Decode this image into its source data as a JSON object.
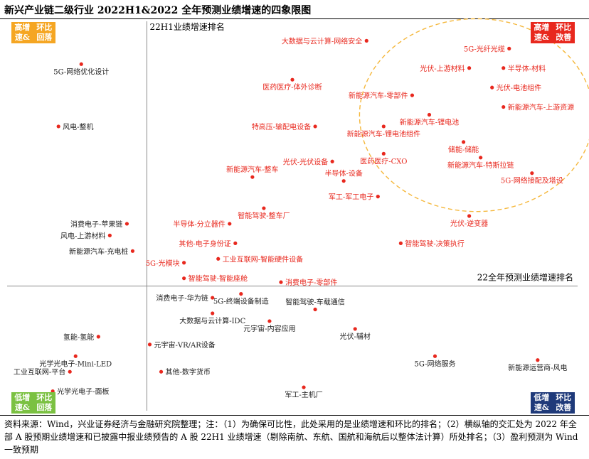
{
  "title": "新兴产业链二级行业 2022H1&2022 全年预测业绩增速的四象限图",
  "footnote": "资料来源：Wind，兴业证券经济与金融研究院整理；注：（1）为确保可比性，此处采用的是业绩增速和环比的排名；（2）横纵轴的交汇处为 2022 年全部 A 股预期业绩增速和已披露中报业绩预告的 A 股 22H1 业绩增速（剔除南航、东航、国航和海航后以整体法计算）所处排名；（3）盈利预测为 Wind 一致预期",
  "quadrants": {
    "top_left": {
      "line1": "高增速&",
      "line2": "环比回落",
      "color": "#F5A623"
    },
    "top_right": {
      "line1": "高增速&",
      "line2": "环比改善",
      "color": "#E8281E"
    },
    "bottom_left": {
      "line1": "低增速&",
      "line2": "环比回落",
      "color": "#7BC142"
    },
    "bottom_right": {
      "line1": "低增速&",
      "line2": "环比改善",
      "color": "#1F3A7A"
    }
  },
  "colors": {
    "improve": "#E8281E",
    "decline": "#222222",
    "highlight": "#F5B83D",
    "axis": "#8a8a8a"
  },
  "chart_data": {
    "type": "scatter",
    "title": "新兴产业链二级行业 2022H1&2022 全年预测业绩增速的四象限图",
    "ylabel": "22H1业绩增速排名",
    "xlabel": "22全年预测业绩增速排名",
    "x_range": [
      0,
      100
    ],
    "y_range": [
      0,
      100
    ],
    "crossing": {
      "x": 24.5,
      "y": 32
    },
    "highlight_group": "top-right dashed circle",
    "points": [
      {
        "label": "5G-网络优化设计",
        "x": 13,
        "y": 89,
        "group": "decline",
        "label_pos": "below"
      },
      {
        "label": "风电-整机",
        "x": 9,
        "y": 73,
        "group": "decline",
        "label_pos": "right"
      },
      {
        "label": "消费电子-苹果链",
        "x": 21,
        "y": 48,
        "group": "decline",
        "label_pos": "left"
      },
      {
        "label": "风电-上游材料",
        "x": 18,
        "y": 45,
        "group": "decline",
        "label_pos": "left"
      },
      {
        "label": "新能源汽车-充电桩",
        "x": 22,
        "y": 41,
        "group": "decline",
        "label_pos": "left"
      },
      {
        "label": "消费电子-华为链",
        "x": 36,
        "y": 29,
        "group": "decline",
        "label_pos": "left"
      },
      {
        "label": "大数据与云计算-IDC",
        "x": 36,
        "y": 25,
        "group": "decline",
        "label_pos": "below"
      },
      {
        "label": "5G-终端设备制造",
        "x": 41,
        "y": 30,
        "group": "decline",
        "label_pos": "below"
      },
      {
        "label": "智能驾驶-车载通信",
        "x": 54,
        "y": 26,
        "group": "decline",
        "label_pos": "above"
      },
      {
        "label": "元宇宙-内容应用",
        "x": 46,
        "y": 23,
        "group": "decline",
        "label_pos": "below"
      },
      {
        "label": "光伏-辅材",
        "x": 61,
        "y": 21,
        "group": "decline",
        "label_pos": "below"
      },
      {
        "label": "氢能-氢能",
        "x": 16,
        "y": 19,
        "group": "decline",
        "label_pos": "left"
      },
      {
        "label": "元宇宙-VR/AR设备",
        "x": 25,
        "y": 17,
        "group": "decline",
        "label_pos": "right"
      },
      {
        "label": "光学光电子-Mini-LED",
        "x": 12,
        "y": 14,
        "group": "decline",
        "label_pos": "below"
      },
      {
        "label": "5G-网络服务",
        "x": 75,
        "y": 14,
        "group": "decline",
        "label_pos": "below"
      },
      {
        "label": "新能源运营商-风电",
        "x": 93,
        "y": 13,
        "group": "decline",
        "label_pos": "below"
      },
      {
        "label": "工业互联网-平台",
        "x": 11,
        "y": 10,
        "group": "decline",
        "label_pos": "left"
      },
      {
        "label": "其他-数字货币",
        "x": 27,
        "y": 10,
        "group": "decline",
        "label_pos": "right"
      },
      {
        "label": "光学光电子-面板",
        "x": 8,
        "y": 5,
        "group": "decline",
        "label_pos": "right"
      },
      {
        "label": "军工-主机厂",
        "x": 52,
        "y": 6,
        "group": "decline",
        "label_pos": "below"
      },
      {
        "label": "大数据与云计算-网络安全",
        "x": 63,
        "y": 95,
        "group": "improve",
        "label_pos": "left"
      },
      {
        "label": "医药医疗-体外诊断",
        "x": 50,
        "y": 85,
        "group": "improve",
        "label_pos": "below"
      },
      {
        "label": "特高压-输配电设备",
        "x": 54,
        "y": 73,
        "group": "improve",
        "label_pos": "left"
      },
      {
        "label": "新能源汽车-锂电池组件",
        "x": 66,
        "y": 73,
        "group": "improve",
        "label_pos": "below"
      },
      {
        "label": "光伏-光伏设备",
        "x": 57,
        "y": 64,
        "group": "improve",
        "label_pos": "left"
      },
      {
        "label": "医药医疗-CXO",
        "x": 66,
        "y": 66,
        "group": "improve",
        "label_pos": "below"
      },
      {
        "label": "新能源汽车-整车",
        "x": 43,
        "y": 60,
        "group": "improve",
        "label_pos": "above"
      },
      {
        "label": "半导体-设备",
        "x": 59,
        "y": 59,
        "group": "improve",
        "label_pos": "above"
      },
      {
        "label": "军工-军工电子",
        "x": 65,
        "y": 55,
        "group": "improve",
        "label_pos": "left"
      },
      {
        "label": "智能驾驶-整车厂",
        "x": 45,
        "y": 52,
        "group": "improve",
        "label_pos": "below"
      },
      {
        "label": "半导体-分立器件",
        "x": 39,
        "y": 48,
        "group": "improve",
        "label_pos": "left"
      },
      {
        "label": "其他-电子身份证",
        "x": 40,
        "y": 43,
        "group": "improve",
        "label_pos": "left"
      },
      {
        "label": "工业互联网-智能硬件设备",
        "x": 37,
        "y": 39,
        "group": "improve",
        "label_pos": "right"
      },
      {
        "label": "5G-光模块",
        "x": 31,
        "y": 38,
        "group": "improve",
        "label_pos": "left"
      },
      {
        "label": "智能驾驶-智能座舱",
        "x": 31,
        "y": 34,
        "group": "improve",
        "label_pos": "right"
      },
      {
        "label": "消费电子-零部件",
        "x": 48,
        "y": 33,
        "group": "improve",
        "label_pos": "right"
      },
      {
        "label": "智能驾驶-决策执行",
        "x": 69,
        "y": 43,
        "group": "improve",
        "label_pos": "right"
      },
      {
        "label": "光伏-逆变器",
        "x": 81,
        "y": 50,
        "group": "improve",
        "label_pos": "below"
      },
      {
        "label": "5G-光纤光缆",
        "x": 88,
        "y": 93,
        "group": "improve",
        "label_pos": "left",
        "highlight": true
      },
      {
        "label": "半导体-材料",
        "x": 87,
        "y": 88,
        "group": "improve",
        "label_pos": "right",
        "highlight": true
      },
      {
        "label": "光伏-上游材料",
        "x": 81,
        "y": 88,
        "group": "improve",
        "label_pos": "left",
        "highlight": true
      },
      {
        "label": "光伏-电池组件",
        "x": 85,
        "y": 83,
        "group": "improve",
        "label_pos": "right",
        "highlight": true
      },
      {
        "label": "新能源汽车-零部件",
        "x": 71,
        "y": 81,
        "group": "improve",
        "label_pos": "left",
        "highlight": true
      },
      {
        "label": "新能源汽车-上游资源",
        "x": 87,
        "y": 78,
        "group": "improve",
        "label_pos": "right",
        "highlight": true
      },
      {
        "label": "新能源汽车-锂电池",
        "x": 74,
        "y": 76,
        "group": "improve",
        "label_pos": "below",
        "highlight": true
      },
      {
        "label": "储能-储能",
        "x": 80,
        "y": 69,
        "group": "improve",
        "label_pos": "below",
        "highlight": true
      },
      {
        "label": "新能源汽车-特斯拉链",
        "x": 83,
        "y": 65,
        "group": "improve",
        "label_pos": "below",
        "highlight": true
      },
      {
        "label": "5G-网络接配及塔设",
        "x": 92,
        "y": 61,
        "group": "improve",
        "label_pos": "below",
        "highlight": true
      }
    ]
  }
}
